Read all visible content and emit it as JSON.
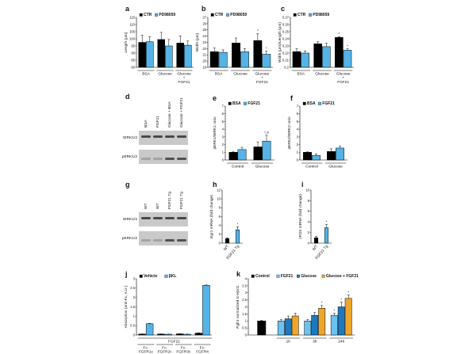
{
  "colors": {
    "black": "#000000",
    "blue": "#55b3e6",
    "light_blue": "#6cc2ee",
    "dark_blue": "#1d78bd",
    "orange": "#eea62a",
    "blot_bg": "#c9c9c9",
    "blot_band": "#333333"
  },
  "blots": [
    {
      "letter": "d",
      "lanes": [
        "BSA",
        "FGF21",
        "Glucose + BSA",
        "Glucose + FGF21"
      ],
      "rows": [
        "tERK1/2",
        "pERK1/2"
      ]
    },
    {
      "letter": "g",
      "lanes": [
        "WT",
        "WT",
        "FGF21 Tg",
        "FGF21 Tg"
      ],
      "rows": [
        "tERK1/2",
        "pERK1/2"
      ]
    }
  ],
  "chart_data": [
    {
      "id": "a",
      "letter": "a",
      "type": "bar",
      "ylabel": "Length (µm)",
      "ylim": [
        80,
        115
      ],
      "ticks": [
        80,
        85,
        90,
        95,
        100,
        105,
        110,
        115
      ],
      "series": [
        {
          "name": "CTR",
          "color": "black"
        },
        {
          "name": "PD98059",
          "color": "blue"
        }
      ],
      "groups": [
        {
          "label": "BSA",
          "bars": [
            {
              "s": 0,
              "v": 97.5,
              "e": 5
            },
            {
              "s": 1,
              "v": 98,
              "e": 3.5
            }
          ]
        },
        {
          "label": "Glucose",
          "bars": [
            {
              "s": 0,
              "v": 99.5,
              "e": 5
            },
            {
              "s": 1,
              "v": 95,
              "e": 4.5
            }
          ]
        },
        {
          "label": "Glucose\n+\nFGF21",
          "bars": [
            {
              "s": 0,
              "v": 97,
              "e": 5
            },
            {
              "s": 1,
              "v": 95.5,
              "e": 3
            }
          ]
        }
      ]
    },
    {
      "id": "b",
      "letter": "b",
      "type": "bar",
      "ylabel": "Width (µm)",
      "ylim": [
        19,
        27
      ],
      "ticks": [
        19,
        20,
        21,
        22,
        23,
        24,
        25,
        26,
        27
      ],
      "series": [
        {
          "name": "CTR",
          "color": "black"
        },
        {
          "name": "PD98059",
          "color": "blue"
        }
      ],
      "groups": [
        {
          "label": "BSA",
          "bars": [
            {
              "s": 0,
              "v": 21.5,
              "e": 0.6
            },
            {
              "s": 1,
              "v": 21.4,
              "e": 0.4
            }
          ]
        },
        {
          "label": "Glucose",
          "bars": [
            {
              "s": 0,
              "v": 22.9,
              "e": 0.8
            },
            {
              "s": 1,
              "v": 21.5,
              "e": 0.5
            }
          ]
        },
        {
          "label": "Glucose\n+\nFGF21",
          "bars": [
            {
              "s": 0,
              "v": 23.3,
              "e": 1.1,
              "mark": "^"
            },
            {
              "s": 1,
              "v": 21.1,
              "e": 0.5,
              "mark": "*"
            }
          ]
        }
      ]
    },
    {
      "id": "c",
      "letter": "c",
      "type": "bar",
      "ylabel": "Width (µm)/Length (µm)",
      "ylim": [
        0.2,
        0.27
      ],
      "ticks": [
        0.2,
        0.21,
        0.22,
        0.23,
        0.24,
        0.25,
        0.26,
        0.27
      ],
      "series": [
        {
          "name": "CTR",
          "color": "black"
        },
        {
          "name": "PD98059",
          "color": "blue"
        }
      ],
      "groups": [
        {
          "label": "BSA",
          "bars": [
            {
              "s": 0,
              "v": 0.222,
              "e": 0.004
            },
            {
              "s": 1,
              "v": 0.22,
              "e": 0.003
            }
          ]
        },
        {
          "label": "Glucose",
          "bars": [
            {
              "s": 0,
              "v": 0.233,
              "e": 0.003
            },
            {
              "s": 1,
              "v": 0.229,
              "e": 0.005
            }
          ]
        },
        {
          "label": "Glucose\n+\nFGF21",
          "bars": [
            {
              "s": 0,
              "v": 0.242,
              "e": 0.001,
              "mark": "^"
            },
            {
              "s": 1,
              "v": 0.224,
              "e": 0.002,
              "mark": "*"
            }
          ]
        }
      ]
    },
    {
      "id": "e",
      "letter": "e",
      "type": "bar",
      "ylabel": "pERK1/tERK1 ratio",
      "ylim": [
        0,
        7
      ],
      "ticks": [
        0,
        1,
        2,
        3,
        4,
        5,
        6,
        7
      ],
      "series": [
        {
          "name": "BSA",
          "color": "black"
        },
        {
          "name": "FGF21",
          "color": "blue"
        }
      ],
      "groups": [
        {
          "label": "Control",
          "bars": [
            {
              "s": 0,
              "v": 1.0,
              "e": 0.05
            },
            {
              "s": 1,
              "v": 1.35,
              "e": 0.3
            }
          ]
        },
        {
          "label": "Glucose",
          "bars": [
            {
              "s": 0,
              "v": 1.7,
              "e": 0.65
            },
            {
              "s": 1,
              "v": 2.45,
              "e": 0.75,
              "mark": "^,#"
            }
          ]
        }
      ]
    },
    {
      "id": "f",
      "letter": "f",
      "type": "bar",
      "ylabel": "pERK2/tERK2 ratio",
      "ylim": [
        0,
        7
      ],
      "ticks": [
        0,
        1,
        2,
        3,
        4,
        5,
        6,
        7
      ],
      "series": [
        {
          "name": "BSA",
          "color": "black"
        },
        {
          "name": "FGF21",
          "color": "blue"
        }
      ],
      "groups": [
        {
          "label": "Control",
          "bars": [
            {
              "s": 0,
              "v": 1.0,
              "e": 0.05
            },
            {
              "s": 1,
              "v": 0.6,
              "e": 0.2
            }
          ]
        },
        {
          "label": "Glucose",
          "bars": [
            {
              "s": 0,
              "v": 1.1,
              "e": 0.35
            },
            {
              "s": 1,
              "v": 1.55,
              "e": 0.25
            }
          ]
        }
      ]
    },
    {
      "id": "h",
      "letter": "h",
      "type": "bar",
      "ylabel": "Egr1 mRNA (fold change)",
      "ylim": [
        0,
        12
      ],
      "ticks": [
        0,
        2,
        4,
        6,
        8,
        10,
        12
      ],
      "rotate_labels": true,
      "series": [
        {
          "name": "WT",
          "color": "black"
        },
        {
          "name": "FGF21 Tg",
          "color": "blue"
        }
      ],
      "groups": [
        {
          "label": "WT",
          "bars": [
            {
              "s": 0,
              "v": 1.0,
              "e": 0.2
            }
          ]
        },
        {
          "label": "FGF21 Tg",
          "bars": [
            {
              "s": 1,
              "v": 3.0,
              "e": 0.7,
              "mark": "*"
            }
          ]
        }
      ]
    },
    {
      "id": "i",
      "letter": "i",
      "type": "bar",
      "ylabel": "cFOS mRNA (fold change)",
      "ylim": [
        0,
        10
      ],
      "ticks": [
        0,
        2,
        4,
        6,
        8,
        10
      ],
      "rotate_labels": true,
      "series": [
        {
          "name": "WT",
          "color": "black"
        },
        {
          "name": "FGF21 Tg",
          "color": "blue"
        }
      ],
      "groups": [
        {
          "label": "WT",
          "bars": [
            {
              "s": 0,
              "v": 1.0,
              "e": 0.3
            }
          ]
        },
        {
          "label": "FGF21 Tg",
          "bars": [
            {
              "s": 1,
              "v": 2.9,
              "e": 0.6,
              "mark": "*"
            }
          ]
        }
      ]
    },
    {
      "id": "j",
      "letter": "j",
      "type": "bar",
      "ylabel": "Absorption (anti-Fc, A.U.)",
      "ylim": [
        0,
        3.0
      ],
      "ticks": [
        0,
        0.5,
        1.0,
        1.5,
        2.0,
        2.5,
        3.0
      ],
      "super_label": "FGF21",
      "series": [
        {
          "name": "Vehicle",
          "color": "black"
        },
        {
          "name": "βKL",
          "color": "blue"
        }
      ],
      "groups": [
        {
          "label": "Fc-\nFGFR1c",
          "bars": [
            {
              "s": 0,
              "v": 0.05,
              "e": 0.01
            },
            {
              "s": 1,
              "v": 0.6,
              "e": 0.02
            }
          ]
        },
        {
          "label": "Fc-\nFGFR2c",
          "bars": [
            {
              "s": 0,
              "v": 0.05,
              "e": 0.01
            },
            {
              "s": 1,
              "v": 0.04,
              "e": 0.01
            }
          ]
        },
        {
          "label": "Fc-\nFGFR3c",
          "bars": [
            {
              "s": 0,
              "v": 0.06,
              "e": 0.01
            },
            {
              "s": 1,
              "v": 0.04,
              "e": 0.01
            }
          ]
        },
        {
          "label": "Fc-\nFGFR4",
          "bars": [
            {
              "s": 0,
              "v": 0.1,
              "e": 0.02
            },
            {
              "s": 1,
              "v": 2.65,
              "e": 0.02
            }
          ]
        }
      ]
    },
    {
      "id": "k",
      "letter": "k",
      "type": "bar",
      "ylabel": "Fgfr4 normalized to Hprt1",
      "ylim": [
        0,
        4.0
      ],
      "ticks": [
        0,
        0.5,
        1.0,
        1.5,
        2.0,
        2.5,
        3.0,
        3.5,
        4.0
      ],
      "series": [
        {
          "name": "Control",
          "color": "black"
        },
        {
          "name": "FGF21",
          "color": "light_blue"
        },
        {
          "name": "Glucose",
          "color": "dark_blue"
        },
        {
          "name": "Glucose + FGF21",
          "color": "orange"
        }
      ],
      "groups": [
        {
          "label": "",
          "bars": [
            {
              "s": 0,
              "v": 1.0,
              "e": 0.03
            }
          ]
        },
        {
          "label": "1h",
          "bars": [
            {
              "s": 1,
              "v": 1.0,
              "e": 0.1
            },
            {
              "s": 2,
              "v": 1.15,
              "e": 0.2
            },
            {
              "s": 3,
              "v": 1.35,
              "e": 0.2
            }
          ]
        },
        {
          "label": "3h",
          "bars": [
            {
              "s": 1,
              "v": 1.0,
              "e": 0.1
            },
            {
              "s": 2,
              "v": 1.4,
              "e": 0.2
            },
            {
              "s": 3,
              "v": 1.9,
              "e": 0.2,
              "mark": "*"
            }
          ]
        },
        {
          "label": "24h",
          "bars": [
            {
              "s": 1,
              "v": 1.4,
              "e": 0.15,
              "mark": "*"
            },
            {
              "s": 2,
              "v": 2.0,
              "e": 0.35,
              "mark": "*"
            },
            {
              "s": 3,
              "v": 2.6,
              "e": 0.25,
              "mark": "*"
            }
          ]
        }
      ]
    }
  ]
}
